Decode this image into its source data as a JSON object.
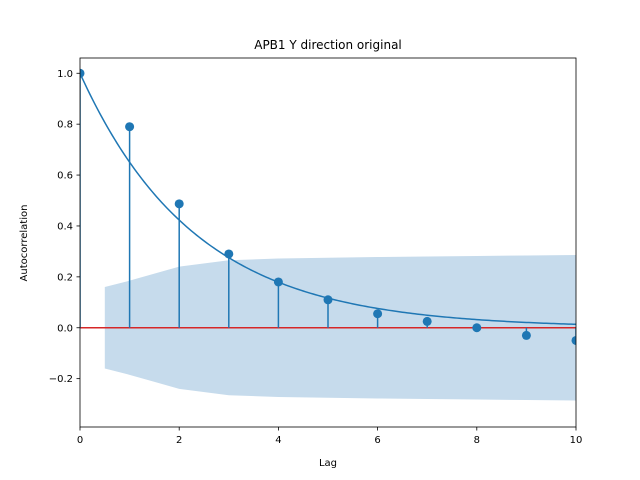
{
  "chart_data": {
    "type": "stem",
    "title": "APB1 Y direction original",
    "xlabel": "Lag",
    "ylabel": "Autocorrelation",
    "xlim": [
      0,
      10
    ],
    "ylim": [
      -0.39,
      1.06
    ],
    "x_ticks": [
      0,
      2,
      4,
      6,
      8,
      10
    ],
    "x_tick_labels": [
      "0",
      "2",
      "4",
      "6",
      "8",
      "10"
    ],
    "y_ticks": [
      -0.2,
      0.0,
      0.2,
      0.4,
      0.6,
      0.8,
      1.0
    ],
    "y_tick_labels": [
      "−0.2",
      "0.0",
      "0.2",
      "0.4",
      "0.6",
      "0.8",
      "1.0"
    ],
    "lags": [
      0,
      1,
      2,
      3,
      4,
      5,
      6,
      7,
      8,
      9,
      10
    ],
    "values": [
      1.0,
      0.79,
      0.487,
      0.29,
      0.18,
      0.11,
      0.055,
      0.025,
      0.0,
      -0.03,
      -0.05
    ],
    "confidence_band": {
      "lags": [
        0.5,
        1,
        2,
        3,
        4,
        5,
        6,
        7,
        8,
        9,
        10
      ],
      "upper": [
        0.16,
        0.185,
        0.24,
        0.265,
        0.272,
        0.275,
        0.278,
        0.28,
        0.282,
        0.284,
        0.286
      ],
      "lower": [
        -0.16,
        -0.185,
        -0.24,
        -0.265,
        -0.272,
        -0.275,
        -0.278,
        -0.28,
        -0.282,
        -0.284,
        -0.286
      ]
    },
    "fitted_curve": {
      "a": 1.0,
      "decay": 0.43
    },
    "colors": {
      "stem": "#1f77b4",
      "curve": "#1f77b4",
      "band": "#c6dbec",
      "zero_line": "#d62728"
    },
    "grid": false,
    "legend": "none"
  }
}
